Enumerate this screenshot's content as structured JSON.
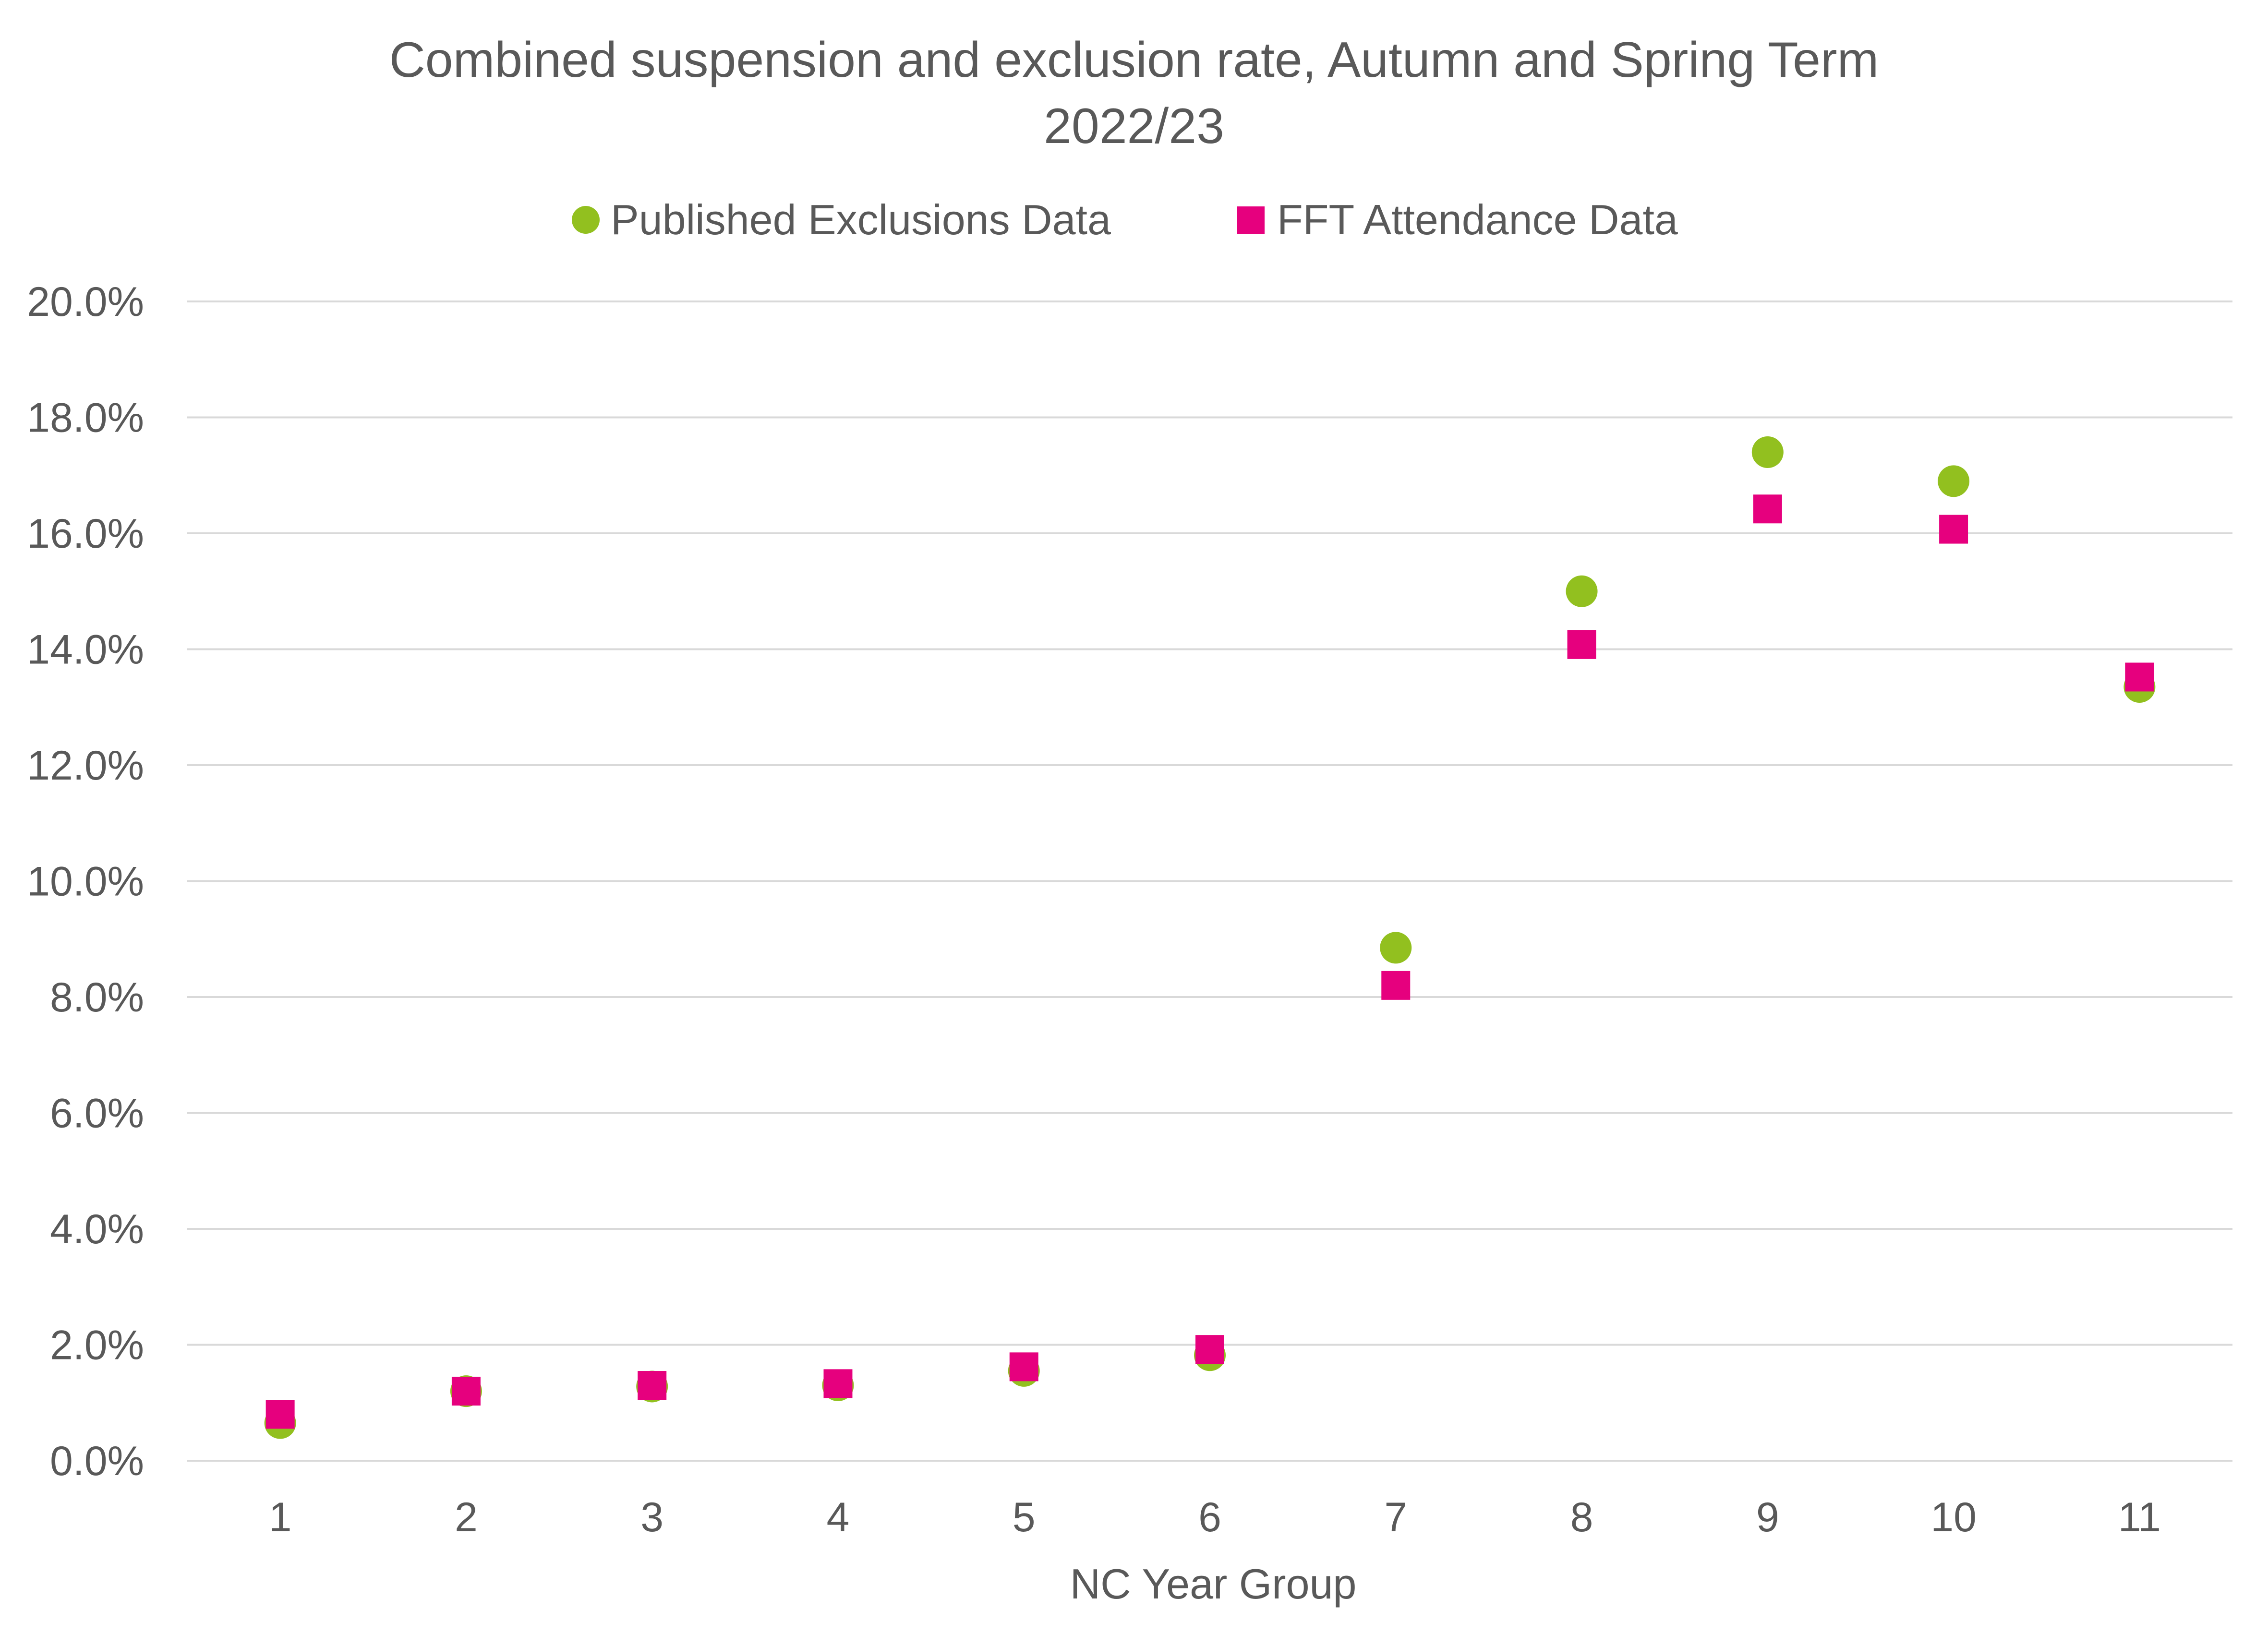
{
  "chart_data": {
    "type": "scatter",
    "title_lines": [
      "Combined suspension and exclusion rate, Autumn and Spring Term",
      "2022/23"
    ],
    "xlabel": "NC Year Group",
    "ylabel": "",
    "categories": [
      "1",
      "2",
      "3",
      "4",
      "5",
      "6",
      "7",
      "8",
      "9",
      "10",
      "11"
    ],
    "ylim": [
      0,
      20
    ],
    "yticks": [
      "0.0%",
      "2.0%",
      "4.0%",
      "6.0%",
      "8.0%",
      "10.0%",
      "12.0%",
      "14.0%",
      "16.0%",
      "18.0%",
      "20.0%"
    ],
    "ytick_values": [
      0,
      2,
      4,
      6,
      8,
      10,
      12,
      14,
      16,
      18,
      20
    ],
    "grid": true,
    "legend_position": "top",
    "series": [
      {
        "name": "Published Exclusions Data",
        "marker": "circle",
        "color": "#92c01f",
        "values": [
          0.65,
          1.2,
          1.28,
          1.3,
          1.55,
          1.82,
          8.85,
          15.0,
          17.4,
          16.9,
          13.35
        ]
      },
      {
        "name": "FFT Attendance Data",
        "marker": "square",
        "color": "#e6007e",
        "values": [
          0.8,
          1.2,
          1.3,
          1.33,
          1.62,
          1.92,
          8.2,
          14.08,
          16.42,
          16.07,
          13.52
        ]
      }
    ]
  }
}
